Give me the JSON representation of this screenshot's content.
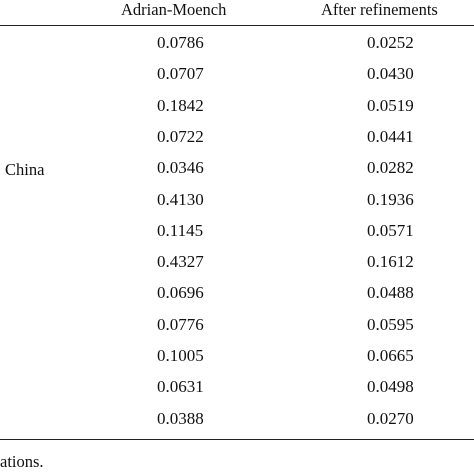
{
  "table": {
    "headers": [
      "Adrian-Moench",
      "After refinements"
    ],
    "group_label": "China",
    "rows": [
      [
        "0.0786",
        "0.0252"
      ],
      [
        "0.0707",
        "0.0430"
      ],
      [
        "0.1842",
        "0.0519"
      ],
      [
        "0.0722",
        "0.0441"
      ],
      [
        "0.0346",
        "0.0282"
      ],
      [
        "0.4130",
        "0.1936"
      ],
      [
        "0.1145",
        "0.0571"
      ],
      [
        "0.4327",
        "0.1612"
      ],
      [
        "0.0696",
        "0.0488"
      ],
      [
        "0.0776",
        "0.0595"
      ],
      [
        "0.1005",
        "0.0665"
      ],
      [
        "0.0631",
        "0.0498"
      ],
      [
        "0.0388",
        "0.0270"
      ]
    ]
  },
  "footnote": "ations."
}
